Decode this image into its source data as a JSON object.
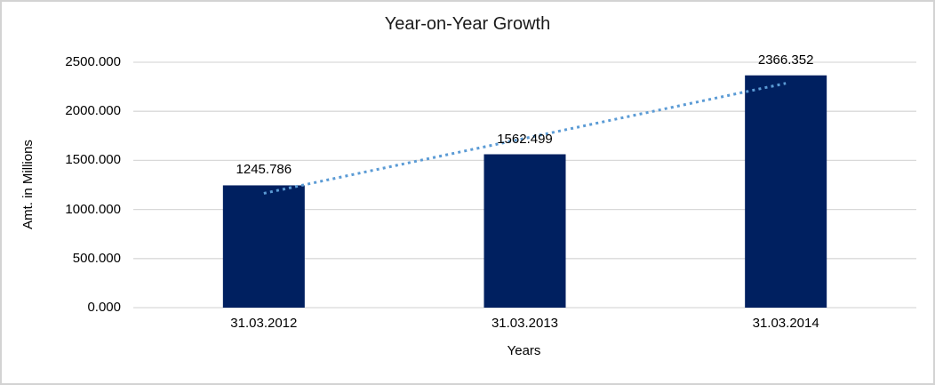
{
  "chart_data": {
    "type": "bar",
    "title": "Year-on-Year Growth",
    "xlabel": "Years",
    "ylabel": "Amt. in Millions",
    "categories": [
      "31.03.2012",
      "31.03.2013",
      "31.03.2014"
    ],
    "values": [
      1245.786,
      1562.499,
      2366.352
    ],
    "data_labels": [
      "1245.786",
      "1562.499",
      "2366.352"
    ],
    "y_tick_values": [
      0,
      500,
      1000,
      1500,
      2000,
      2500
    ],
    "y_tick_labels": [
      "0.000",
      "500.000",
      "1000.000",
      "1500.000",
      "2000.000",
      "2500.000"
    ],
    "ylim": [
      0,
      2500
    ],
    "grid": "horizontal",
    "legend": "none",
    "trendline": {
      "type": "linear",
      "style": "dotted",
      "color": "#5B9BD5"
    },
    "colors": {
      "bar": "#002060",
      "gridline": "#D9D9D9",
      "text": "#000000",
      "title_text": "#1A1A1A",
      "frame_border": "#D3D3D3",
      "background": "#FFFFFF"
    }
  }
}
